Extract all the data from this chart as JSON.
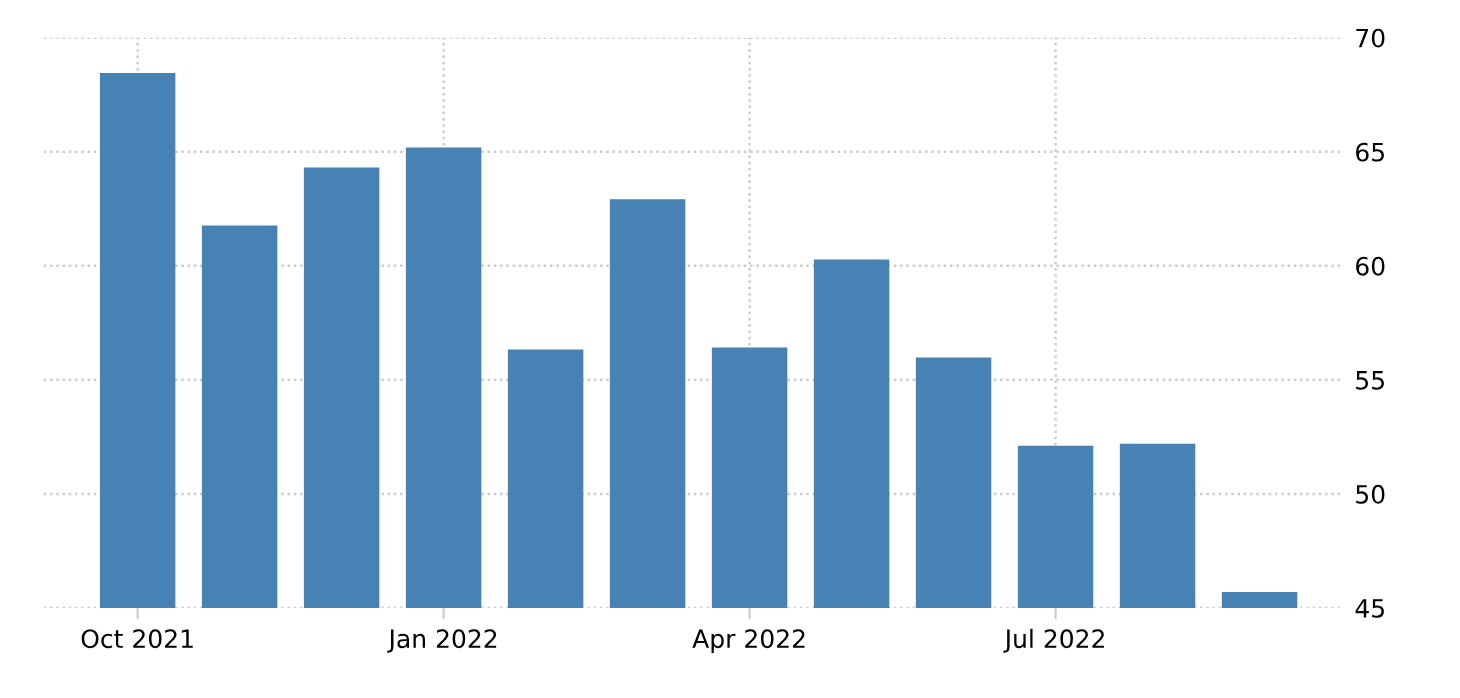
{
  "chart_data": {
    "type": "bar",
    "categories": [
      "Oct 2021",
      null,
      null,
      "Jan 2022",
      null,
      null,
      "Apr 2022",
      null,
      null,
      "Jul 2022",
      null,
      null
    ],
    "values": [
      68.45,
      61.77,
      64.31,
      65.19,
      56.33,
      62.92,
      56.42,
      60.28,
      55.98,
      52.11,
      52.2,
      45.7
    ],
    "color": "#4682b4",
    "ylim": [
      45,
      70
    ],
    "yticks": [
      45,
      50,
      55,
      60,
      65,
      70
    ],
    "grid": true
  }
}
